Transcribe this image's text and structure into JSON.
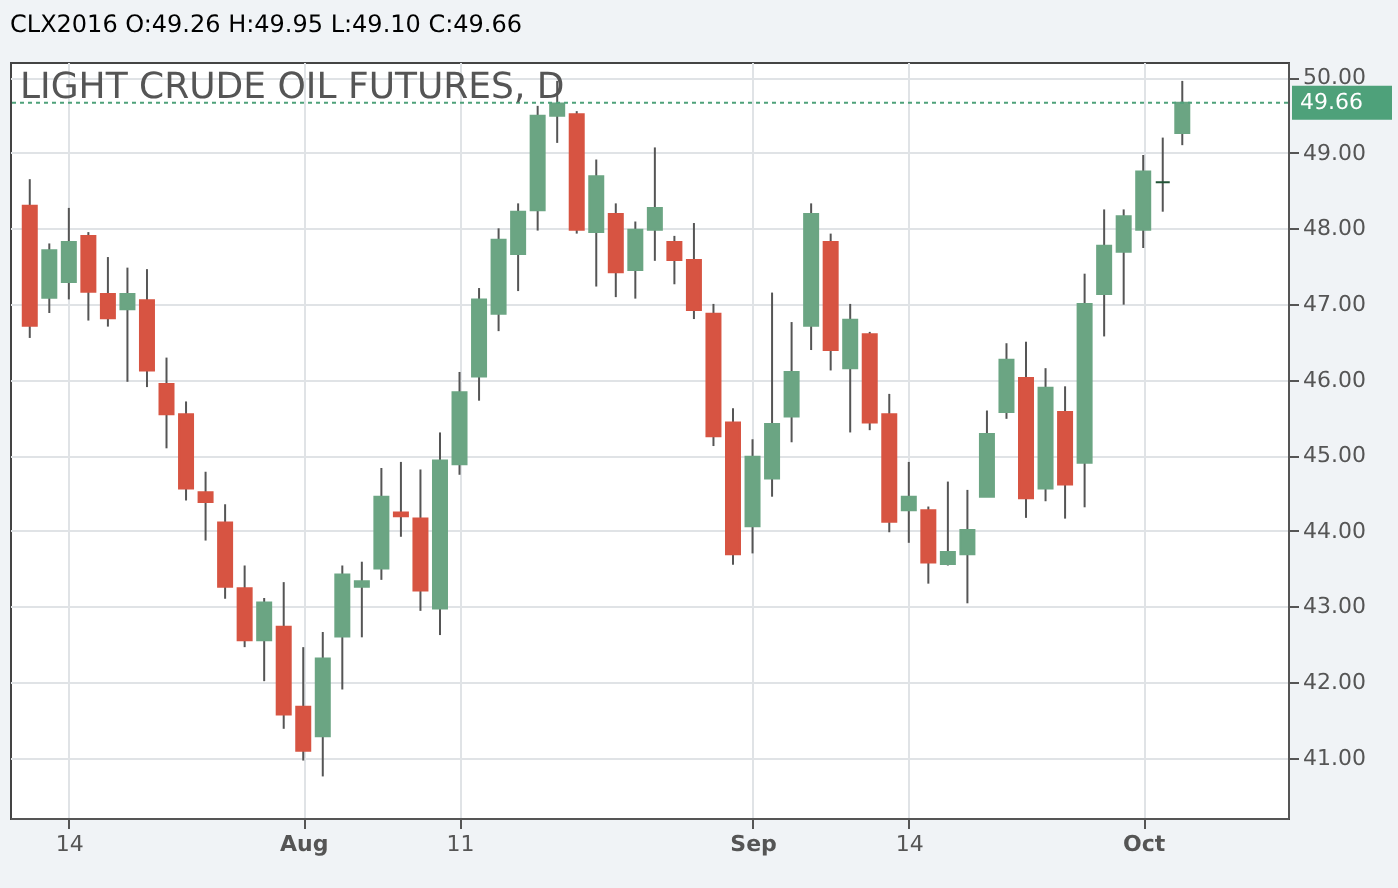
{
  "chart_data": {
    "type": "candlestick",
    "title": "CLX2016 O:49.26 H:49.95 L:49.10 C:49.66",
    "subtitle": "LIGHT CRUDE OIL FUTURES, D",
    "categories": [
      null,
      null,
      "14",
      null,
      null,
      null,
      null,
      null,
      null,
      null,
      null,
      null,
      null,
      null,
      "Aug",
      null,
      null,
      null,
      null,
      null,
      null,
      null,
      "11",
      null,
      null,
      null,
      null,
      null,
      null,
      null,
      null,
      null,
      null,
      null,
      null,
      null,
      null,
      "Sep",
      null,
      null,
      null,
      null,
      null,
      null,
      null,
      "14",
      null,
      null,
      null,
      null,
      null,
      null,
      null,
      null,
      null,
      null,
      null,
      "Oct",
      null,
      null
    ],
    "ohlc": [
      [
        48.3,
        48.65,
        46.55,
        46.71
      ],
      [
        47.08,
        47.8,
        46.88,
        47.71
      ],
      [
        47.29,
        48.27,
        47.06,
        47.82
      ],
      [
        47.9,
        47.95,
        46.78,
        47.16
      ],
      [
        47.13,
        47.62,
        46.7,
        46.81
      ],
      [
        46.93,
        47.48,
        45.97,
        47.13
      ],
      [
        47.05,
        47.46,
        45.9,
        46.12
      ],
      [
        45.94,
        46.29,
        45.09,
        45.54
      ],
      [
        45.54,
        45.71,
        44.4,
        44.56
      ],
      [
        44.51,
        44.78,
        43.87,
        44.38
      ],
      [
        44.11,
        44.35,
        43.1,
        43.26
      ],
      [
        43.24,
        43.54,
        42.46,
        42.55
      ],
      [
        42.55,
        43.11,
        42.01,
        43.05
      ],
      [
        42.73,
        43.32,
        41.38,
        41.57
      ],
      [
        41.67,
        42.46,
        40.96,
        41.09
      ],
      [
        41.28,
        42.66,
        40.75,
        42.31
      ],
      [
        42.6,
        43.54,
        41.9,
        43.42
      ],
      [
        43.26,
        43.59,
        42.59,
        43.33
      ],
      [
        43.5,
        44.83,
        43.35,
        44.45
      ],
      [
        44.24,
        44.91,
        43.92,
        44.19
      ],
      [
        44.16,
        44.81,
        42.94,
        43.21
      ],
      [
        42.97,
        45.3,
        42.62,
        44.93
      ],
      [
        44.88,
        46.1,
        44.74,
        45.83
      ],
      [
        46.04,
        47.21,
        45.72,
        47.06
      ],
      [
        46.87,
        48.0,
        46.64,
        47.85
      ],
      [
        47.66,
        48.33,
        47.17,
        48.22
      ],
      [
        48.24,
        49.62,
        47.97,
        49.49
      ],
      [
        49.49,
        49.95,
        49.13,
        49.65
      ],
      [
        49.51,
        49.55,
        47.93,
        47.98
      ],
      [
        47.95,
        48.91,
        47.23,
        48.69
      ],
      [
        48.19,
        48.33,
        47.09,
        47.42
      ],
      [
        47.45,
        48.09,
        47.07,
        47.98
      ],
      [
        47.98,
        49.07,
        47.57,
        48.27
      ],
      [
        47.82,
        47.9,
        47.26,
        47.58
      ],
      [
        47.58,
        48.07,
        46.8,
        46.92
      ],
      [
        46.87,
        47.0,
        45.12,
        45.25
      ],
      [
        45.43,
        45.62,
        43.55,
        43.69
      ],
      [
        44.06,
        45.21,
        43.7,
        44.98
      ],
      [
        44.69,
        47.15,
        44.45,
        45.41
      ],
      [
        45.51,
        46.76,
        45.17,
        46.1
      ],
      [
        46.71,
        48.33,
        46.39,
        48.19
      ],
      [
        47.82,
        47.93,
        46.12,
        46.39
      ],
      [
        46.15,
        47.0,
        45.3,
        46.79
      ],
      [
        46.6,
        46.63,
        45.33,
        45.43
      ],
      [
        45.54,
        45.81,
        43.98,
        44.12
      ],
      [
        44.27,
        44.91,
        43.84,
        44.45
      ],
      [
        44.27,
        44.32,
        43.3,
        43.58
      ],
      [
        43.56,
        44.65,
        43.54,
        43.72
      ],
      [
        43.69,
        44.54,
        43.04,
        44.01
      ],
      [
        44.45,
        45.59,
        44.45,
        45.28
      ],
      [
        45.57,
        46.48,
        45.48,
        46.26
      ],
      [
        46.02,
        46.5,
        44.17,
        44.43
      ],
      [
        44.56,
        46.15,
        44.39,
        45.89
      ],
      [
        45.57,
        45.91,
        44.16,
        44.61
      ],
      [
        44.9,
        47.4,
        44.31,
        47.0
      ],
      [
        47.13,
        48.25,
        46.57,
        47.77
      ],
      [
        47.69,
        48.25,
        46.99,
        48.16
      ],
      [
        47.98,
        48.97,
        47.74,
        48.75
      ],
      [
        48.61,
        49.2,
        48.22,
        48.61
      ],
      [
        49.26,
        49.95,
        49.1,
        49.66
      ]
    ],
    "colors": [
      "#d75442",
      "#6ba583",
      "#6ba583",
      "#d75442",
      "#d75442",
      "#6ba583",
      "#d75442",
      "#d75442",
      "#d75442",
      "#d75442",
      "#d75442",
      "#d75442",
      "#6ba583",
      "#d75442",
      "#d75442",
      "#6ba583",
      "#6ba583",
      "#6ba583",
      "#6ba583",
      "#d75442",
      "#d75442",
      "#6ba583",
      "#6ba583",
      "#6ba583",
      "#6ba583",
      "#6ba583",
      "#6ba583",
      "#6ba583",
      "#d75442",
      "#6ba583",
      "#d75442",
      "#6ba583",
      "#6ba583",
      "#d75442",
      "#d75442",
      "#d75442",
      "#d75442",
      "#6ba583",
      "#6ba583",
      "#6ba583",
      "#6ba583",
      "#d75442",
      "#6ba583",
      "#d75442",
      "#d75442",
      "#6ba583",
      "#d75442",
      "#6ba583",
      "#6ba583",
      "#6ba583",
      "#6ba583",
      "#d75442",
      "#6ba583",
      "#d75442",
      "#6ba583",
      "#6ba583",
      "#6ba583",
      "#6ba583",
      "#225437",
      "#6ba583"
    ],
    "ylim": [
      40.2,
      50.2
    ],
    "yticks": [
      {
        "value": 41,
        "label": "41.00"
      },
      {
        "value": 42,
        "label": "42.00"
      },
      {
        "value": 43,
        "label": "43.00"
      },
      {
        "value": 44,
        "label": "44.00"
      },
      {
        "value": 45,
        "label": "45.00"
      },
      {
        "value": 46,
        "label": "46.00"
      },
      {
        "value": 47,
        "label": "47.00"
      },
      {
        "value": 48,
        "label": "48.00"
      },
      {
        "value": 49,
        "label": "49.00"
      },
      {
        "value": 50,
        "label": "50.00"
      }
    ],
    "ref_lines": [
      {
        "axis": "y",
        "value": 49.66,
        "label": "49.66",
        "color": "#4ea17a",
        "line_style": "dotted"
      }
    ],
    "grid": true
  }
}
